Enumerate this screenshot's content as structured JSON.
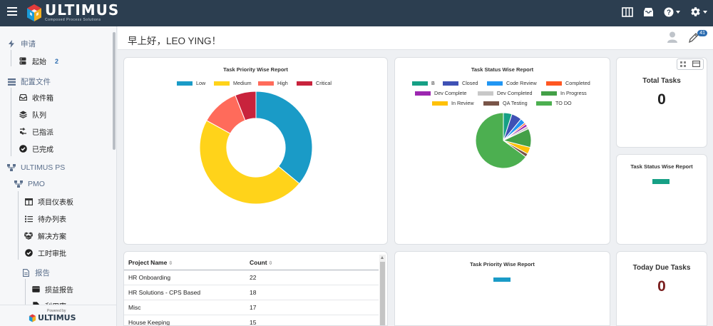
{
  "app": {
    "brand": "ULTIMUS",
    "tagline": "Composed Process Solutions"
  },
  "header": {
    "greeting": "早上好，LEO YING！",
    "notification_count": "41"
  },
  "sidebar": {
    "section_apply": "申请",
    "item_start": "起始",
    "item_start_badge": "2",
    "section_config": "配置文件",
    "item_inbox": "收件箱",
    "item_queue": "队列",
    "item_assigned": "已指派",
    "item_completed": "已完成",
    "section_ultimus_ps": "ULTIMUS PS",
    "section_pmo": "PMO",
    "item_project_dashboard": "项目仪表板",
    "item_todo_list": "待办列表",
    "item_solutions": "解决方案",
    "item_timesheet": "工时审批",
    "section_reports": "报告",
    "item_pl_report": "损益报告",
    "item_utilization": "利用率",
    "footer_powered": "Powered by",
    "footer_brand": "ULTIMUS"
  },
  "cards": {
    "priority_title": "Task Priority Wise Report",
    "status_title": "Task Status Wise Report",
    "total_tasks_label": "Total Tasks",
    "total_tasks_value": "0",
    "status_small_title": "Task Status Wise Report",
    "priority_small_title": "Task Priority Wise Report",
    "today_due_label": "Today Due Tasks",
    "today_due_value": "0"
  },
  "colors": {
    "topbar": "#2c3e50",
    "today_due_value": "#7a1f1f",
    "teal_bar": "#16a085",
    "blue_bar": "#1a9bc7"
  },
  "table": {
    "headers": [
      "Project Name",
      "Count"
    ],
    "rows": [
      [
        "HR Onboarding",
        "22"
      ],
      [
        "HR Solutions - CPS Based",
        "18"
      ],
      [
        "Misc",
        "17"
      ],
      [
        "House Keeping",
        "15"
      ]
    ]
  },
  "chart_data": [
    {
      "type": "pie",
      "title": "Task Priority Wise Report",
      "donut": true,
      "legend_position": "top",
      "labels": [
        "Low",
        "Medium",
        "High",
        "Critical"
      ],
      "values": [
        36,
        47,
        11,
        6
      ],
      "colors": [
        "#1a9bc7",
        "#ffd31a",
        "#ff6b5b",
        "#c8233c"
      ]
    },
    {
      "type": "pie",
      "title": "Task Status Wise Report",
      "donut": false,
      "legend_position": "top",
      "labels": [
        "B",
        "Closed",
        "Code Review",
        "Completed",
        "Dev Complete",
        "Dev Completed",
        "In Progress",
        "In Review",
        "QA Testing",
        "TO DO"
      ],
      "values": [
        5,
        6,
        3,
        1,
        1.5,
        1.5,
        11,
        4,
        2,
        65
      ],
      "colors": [
        "#16a085",
        "#3f51b5",
        "#2196f3",
        "#ff5722",
        "#9c27b0",
        "#c8c8c8",
        "#43a047",
        "#ffc107",
        "#795548",
        "#4caf50"
      ]
    }
  ]
}
